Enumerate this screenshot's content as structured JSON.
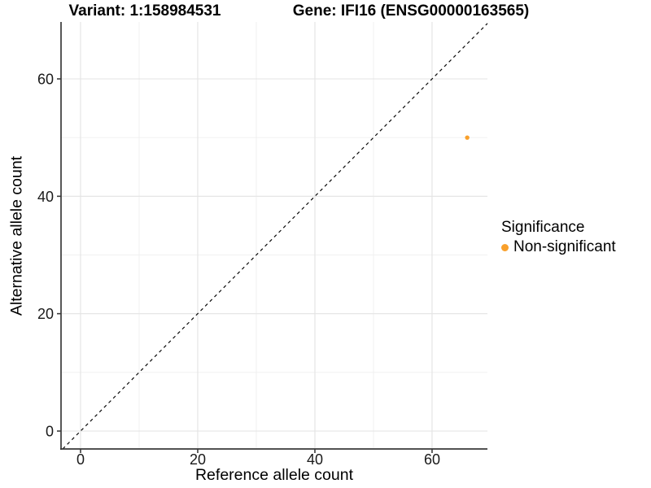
{
  "titles": {
    "variant": "Variant: 1:158984531",
    "gene": "Gene: IFI16 (ENSG00000163565)"
  },
  "axes": {
    "x_label": "Reference allele count",
    "y_label": "Alternative allele count"
  },
  "legend": {
    "title": "Significance",
    "items": [
      {
        "label": "Non-significant",
        "color": "#F9A02B"
      }
    ]
  },
  "colors": {
    "point": "#F9A02B",
    "axis_line": "#3a3a3a",
    "tick_label": "#1a1a1a",
    "grid_major": "#e3e3e3",
    "grid_minor": "#f0f0f0",
    "reference_line": "#0a0a0a",
    "background": "#ffffff"
  },
  "chart_data": {
    "type": "scatter",
    "title": "Variant: 1:158984531 / Gene: IFI16 (ENSG00000163565)",
    "xlabel": "Reference allele count",
    "ylabel": "Alternative allele count",
    "xlim": [
      -3.33,
      69.45
    ],
    "ylim": [
      -3.05,
      69.7
    ],
    "x_ticks": [
      0,
      20,
      40,
      60
    ],
    "y_ticks": [
      0,
      20,
      40,
      60
    ],
    "x_minor_ticks": [
      10,
      30,
      50
    ],
    "y_minor_ticks": [
      10,
      30,
      50
    ],
    "grid": "major+minor on white background",
    "legend_position": "right",
    "legend_title": "Significance",
    "series": [
      {
        "name": "Non-significant",
        "color": "#F9A02B",
        "points": [
          {
            "x": 66,
            "y": 50
          }
        ]
      }
    ],
    "reference_line": {
      "slope": 1,
      "intercept": 0,
      "style": "dashed",
      "color": "#0a0a0a",
      "note": "identity line y = x"
    }
  }
}
